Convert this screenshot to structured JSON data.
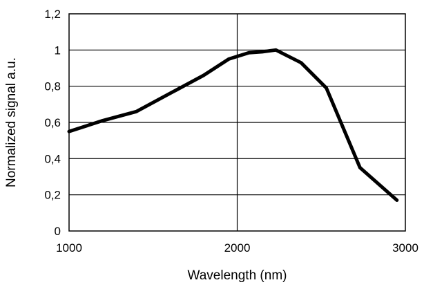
{
  "chart_data": {
    "type": "line",
    "title": "",
    "xlabel": "Wavelength (nm)",
    "ylabel": "Normalized signal a.u.",
    "xlim": [
      1000,
      3000
    ],
    "ylim": [
      0,
      1.2
    ],
    "x_ticks": [
      1000,
      2000,
      3000
    ],
    "x_tick_labels": [
      "1000",
      "2000",
      "3000"
    ],
    "y_ticks": [
      0,
      0.2,
      0.4,
      0.6,
      0.8,
      1.0,
      1.2
    ],
    "y_tick_labels": [
      "0",
      "0,2",
      "0,4",
      "0,6",
      "0,8",
      "1",
      "1,2"
    ],
    "grid": "horizontal at every y tick; vertical at x = 2000",
    "legend": "none",
    "series": [
      {
        "color": "#000000",
        "x": [
          1000,
          1200,
          1400,
          1600,
          1800,
          1950,
          2070,
          2150,
          2230,
          2380,
          2530,
          2730,
          2950
        ],
        "y": [
          0.55,
          0.61,
          0.66,
          0.76,
          0.86,
          0.95,
          0.985,
          0.99,
          1.0,
          0.93,
          0.79,
          0.35,
          0.17
        ]
      }
    ]
  }
}
